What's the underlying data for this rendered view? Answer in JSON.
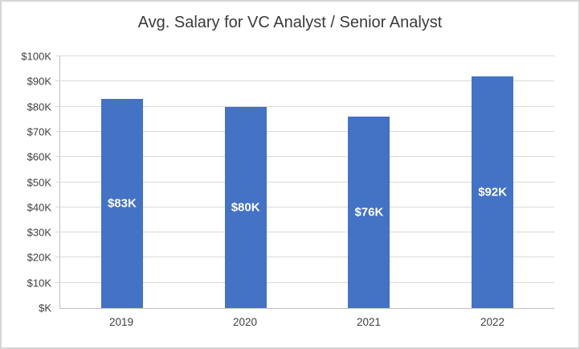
{
  "chart_data": {
    "type": "bar",
    "title": "Avg. Salary for VC Analyst / Senior Analyst",
    "categories": [
      "2019",
      "2020",
      "2021",
      "2022"
    ],
    "values": [
      83,
      80,
      76,
      92
    ],
    "value_labels": [
      "$83K",
      "$80K",
      "$76K",
      "$92K"
    ],
    "ylim": [
      0,
      100
    ],
    "ytick_step": 10,
    "ytick_labels": [
      "$100K",
      "$90K",
      "$80K",
      "$70K",
      "$60K",
      "$50K",
      "$40K",
      "$30K",
      "$20K",
      "$10K",
      "$K"
    ],
    "grid": "horizontal",
    "legend": "none",
    "xlabel": "",
    "ylabel": ""
  },
  "colors": {
    "bar": "#4472C4",
    "bar_label": "#FFFFFF",
    "gridline": "#D9D9D9",
    "axis_line": "#BFBFBF",
    "axis_text": "#404040",
    "title_text": "#3B3B3B",
    "frame_border": "#D6D6D6",
    "background": "#FFFFFF"
  }
}
